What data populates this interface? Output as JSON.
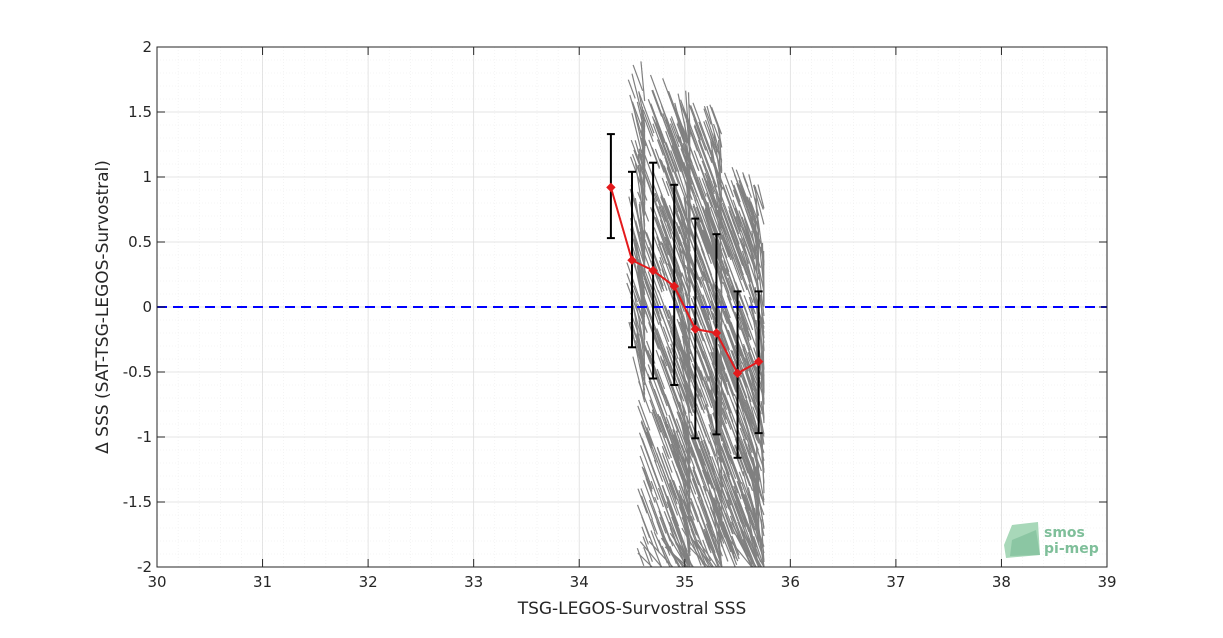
{
  "chart_data": {
    "type": "scatter",
    "title": "",
    "xlabel": "TSG-LEGOS-Survostral SSS",
    "ylabel": "Δ SSS (SAT-TSG-LEGOS-Survostral)",
    "xlim": [
      30,
      39
    ],
    "ylim": [
      -2,
      2
    ],
    "xticks": [
      "30",
      "31",
      "32",
      "33",
      "34",
      "35",
      "36",
      "37",
      "38",
      "39"
    ],
    "yticks": [
      "-2",
      "-1.5",
      "-1",
      "-0.5",
      "0",
      "0.5",
      "1",
      "1.5",
      "2"
    ],
    "grid": true,
    "zero_line": {
      "y": 0,
      "color": "#0000ff",
      "style": "dashed"
    },
    "binned_mean": {
      "color": "#e41a1c",
      "x": [
        34.3,
        34.5,
        34.7,
        34.9,
        35.1,
        35.3,
        35.5,
        35.7
      ],
      "y": [
        0.92,
        0.36,
        0.28,
        0.16,
        -0.17,
        -0.2,
        -0.51,
        -0.42
      ],
      "std_upper": [
        1.33,
        1.04,
        1.11,
        0.94,
        0.68,
        0.56,
        0.12,
        0.12
      ],
      "std_lower": [
        0.53,
        -0.31,
        -0.55,
        -0.6,
        -1.01,
        -0.98,
        -1.16,
        -0.97
      ]
    },
    "scatter_color": "#808080",
    "scatter_clusters": [
      {
        "x": [
          34.45,
          34.62
        ],
        "y": [
          -0.4,
          1.9
        ],
        "count": 90
      },
      {
        "x": [
          34.55,
          35.05
        ],
        "y": [
          -1.9,
          1.8
        ],
        "count": 320
      },
      {
        "x": [
          34.75,
          35.35
        ],
        "y": [
          -1.85,
          1.6
        ],
        "count": 340
      },
      {
        "x": [
          35.0,
          35.7
        ],
        "y": [
          -1.8,
          1.1
        ],
        "count": 300
      },
      {
        "x": [
          35.25,
          35.75
        ],
        "y": [
          -1.8,
          0.95
        ],
        "count": 200
      }
    ]
  },
  "logo": {
    "line1": "smos",
    "line2": "pi-mep"
  }
}
